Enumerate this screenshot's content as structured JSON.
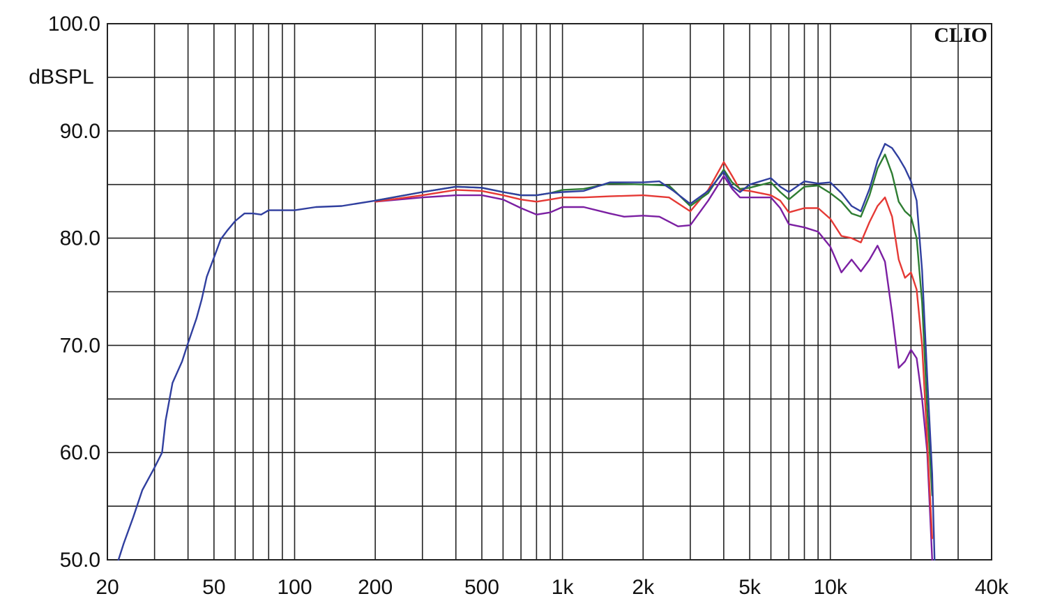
{
  "brand": "CLIO",
  "chart_data": {
    "type": "line",
    "title": "",
    "xlabel": "",
    "ylabel": "dBSPL",
    "xscale": "log",
    "xlim": [
      20,
      40000
    ],
    "ylim": [
      50,
      100
    ],
    "grid": true,
    "y_ticks": [
      {
        "value": 50,
        "label": "50.0"
      },
      {
        "value": 60,
        "label": "60.0"
      },
      {
        "value": 70,
        "label": "70.0"
      },
      {
        "value": 80,
        "label": "80.0"
      },
      {
        "value": 90,
        "label": "90.0"
      },
      {
        "value": 100,
        "label": "100.0"
      }
    ],
    "x_ticks": [
      {
        "value": 20,
        "label": "20"
      },
      {
        "value": 50,
        "label": "50"
      },
      {
        "value": 100,
        "label": "100"
      },
      {
        "value": 200,
        "label": "200"
      },
      {
        "value": 500,
        "label": "500"
      },
      {
        "value": 1000,
        "label": "1k"
      },
      {
        "value": 2000,
        "label": "2k"
      },
      {
        "value": 5000,
        "label": "5k"
      },
      {
        "value": 10000,
        "label": "10k"
      },
      {
        "value": 40000,
        "label": "40k"
      }
    ],
    "x_gridlines": [
      20,
      30,
      40,
      50,
      60,
      70,
      80,
      90,
      100,
      200,
      300,
      400,
      500,
      600,
      700,
      800,
      900,
      1000,
      2000,
      3000,
      4000,
      5000,
      6000,
      7000,
      8000,
      9000,
      10000,
      20000,
      30000,
      40000
    ],
    "y_gridlines": [
      50,
      55,
      60,
      65,
      70,
      75,
      80,
      85,
      90,
      95,
      100
    ],
    "series": [
      {
        "color": "#7b1fa2",
        "points": [
          [
            200,
            83.4
          ],
          [
            300,
            83.8
          ],
          [
            400,
            84
          ],
          [
            500,
            84
          ],
          [
            600,
            83.6
          ],
          [
            700,
            82.8
          ],
          [
            800,
            82.2
          ],
          [
            900,
            82.4
          ],
          [
            1000,
            82.9
          ],
          [
            1200,
            82.9
          ],
          [
            1500,
            82.3
          ],
          [
            1700,
            82
          ],
          [
            2000,
            82.1
          ],
          [
            2300,
            82
          ],
          [
            2700,
            81.1
          ],
          [
            3000,
            81.2
          ],
          [
            3500,
            83.5
          ],
          [
            4000,
            85.8
          ],
          [
            4300,
            84.6
          ],
          [
            4600,
            83.8
          ],
          [
            5000,
            83.8
          ],
          [
            6000,
            83.8
          ],
          [
            6500,
            82.8
          ],
          [
            7000,
            81.3
          ],
          [
            8000,
            81
          ],
          [
            9000,
            80.6
          ],
          [
            10000,
            79.2
          ],
          [
            11000,
            76.8
          ],
          [
            12000,
            78
          ],
          [
            13000,
            76.9
          ],
          [
            14000,
            78
          ],
          [
            15000,
            79.3
          ],
          [
            16000,
            77.8
          ],
          [
            17000,
            73
          ],
          [
            18000,
            67.9
          ],
          [
            19000,
            68.5
          ],
          [
            20000,
            69.6
          ],
          [
            21000,
            68.8
          ],
          [
            22000,
            65
          ],
          [
            23000,
            60
          ],
          [
            24000,
            50
          ]
        ]
      },
      {
        "color": "#e53935",
        "points": [
          [
            200,
            83.4
          ],
          [
            300,
            84
          ],
          [
            400,
            84.5
          ],
          [
            500,
            84.4
          ],
          [
            600,
            84
          ],
          [
            700,
            83.6
          ],
          [
            800,
            83.4
          ],
          [
            900,
            83.6
          ],
          [
            1000,
            83.8
          ],
          [
            1200,
            83.8
          ],
          [
            1500,
            83.9
          ],
          [
            2000,
            84
          ],
          [
            2500,
            83.8
          ],
          [
            3000,
            82.5
          ],
          [
            3500,
            84.5
          ],
          [
            4000,
            87.1
          ],
          [
            4300,
            85.8
          ],
          [
            4600,
            84.5
          ],
          [
            5000,
            84.4
          ],
          [
            6000,
            84
          ],
          [
            6500,
            83.5
          ],
          [
            7000,
            82.4
          ],
          [
            8000,
            82.8
          ],
          [
            9000,
            82.8
          ],
          [
            10000,
            81.8
          ],
          [
            11000,
            80.2
          ],
          [
            12000,
            80
          ],
          [
            13000,
            79.6
          ],
          [
            14000,
            81.5
          ],
          [
            15000,
            83
          ],
          [
            16000,
            83.8
          ],
          [
            17000,
            82
          ],
          [
            18000,
            78
          ],
          [
            19000,
            76.3
          ],
          [
            20000,
            76.8
          ],
          [
            21000,
            75.2
          ],
          [
            22000,
            70
          ],
          [
            23000,
            61
          ],
          [
            24000,
            52
          ]
        ]
      },
      {
        "color": "#2e7d32",
        "points": [
          [
            200,
            83.5
          ],
          [
            300,
            84.3
          ],
          [
            400,
            84.8
          ],
          [
            500,
            84.7
          ],
          [
            600,
            84.3
          ],
          [
            700,
            84
          ],
          [
            800,
            84
          ],
          [
            900,
            84.2
          ],
          [
            1000,
            84.5
          ],
          [
            1200,
            84.6
          ],
          [
            1500,
            85.1
          ],
          [
            2000,
            85
          ],
          [
            2500,
            84.9
          ],
          [
            3000,
            83
          ],
          [
            3500,
            84.2
          ],
          [
            4000,
            86.4
          ],
          [
            4300,
            85.2
          ],
          [
            4600,
            84.6
          ],
          [
            5000,
            84.7
          ],
          [
            6000,
            85.2
          ],
          [
            6500,
            84.3
          ],
          [
            7000,
            83.6
          ],
          [
            8000,
            84.8
          ],
          [
            9000,
            84.9
          ],
          [
            10000,
            84.2
          ],
          [
            11000,
            83.4
          ],
          [
            12000,
            82.3
          ],
          [
            13000,
            82
          ],
          [
            14000,
            84
          ],
          [
            15000,
            86.5
          ],
          [
            16000,
            87.8
          ],
          [
            17000,
            86
          ],
          [
            18000,
            83.4
          ],
          [
            19000,
            82.5
          ],
          [
            20000,
            82
          ],
          [
            21000,
            80
          ],
          [
            22000,
            74
          ],
          [
            23000,
            64
          ],
          [
            24000,
            56
          ]
        ]
      },
      {
        "color": "#303f9f",
        "points": [
          [
            22,
            50
          ],
          [
            23,
            51.5
          ],
          [
            25,
            54
          ],
          [
            27,
            56.5
          ],
          [
            30,
            58.6
          ],
          [
            32,
            60
          ],
          [
            33,
            63
          ],
          [
            35,
            66.5
          ],
          [
            38,
            68.5
          ],
          [
            40,
            70.2
          ],
          [
            43,
            72.5
          ],
          [
            45,
            74.3
          ],
          [
            47,
            76.4
          ],
          [
            50,
            78.2
          ],
          [
            53,
            79.9
          ],
          [
            56,
            80.7
          ],
          [
            60,
            81.6
          ],
          [
            65,
            82.3
          ],
          [
            70,
            82.3
          ],
          [
            75,
            82.2
          ],
          [
            80,
            82.6
          ],
          [
            90,
            82.6
          ],
          [
            100,
            82.6
          ],
          [
            120,
            82.9
          ],
          [
            150,
            83
          ],
          [
            200,
            83.5
          ],
          [
            300,
            84.3
          ],
          [
            400,
            84.8
          ],
          [
            500,
            84.7
          ],
          [
            600,
            84.3
          ],
          [
            700,
            84
          ],
          [
            800,
            84
          ],
          [
            900,
            84.2
          ],
          [
            1000,
            84.3
          ],
          [
            1200,
            84.4
          ],
          [
            1500,
            85.2
          ],
          [
            2000,
            85.2
          ],
          [
            2300,
            85.3
          ],
          [
            2600,
            84.4
          ],
          [
            3000,
            83.2
          ],
          [
            3500,
            84.4
          ],
          [
            4000,
            86.2
          ],
          [
            4300,
            84.8
          ],
          [
            4600,
            84.3
          ],
          [
            5000,
            85
          ],
          [
            6000,
            85.6
          ],
          [
            6500,
            84.8
          ],
          [
            7000,
            84.3
          ],
          [
            8000,
            85.3
          ],
          [
            9000,
            85.1
          ],
          [
            10000,
            85.2
          ],
          [
            11000,
            84.2
          ],
          [
            12000,
            83
          ],
          [
            13000,
            82.5
          ],
          [
            14000,
            84.6
          ],
          [
            15000,
            87.2
          ],
          [
            16000,
            88.8
          ],
          [
            17000,
            88.4
          ],
          [
            18000,
            87.5
          ],
          [
            19000,
            86.5
          ],
          [
            20000,
            85.3
          ],
          [
            21000,
            83.5
          ],
          [
            22000,
            77
          ],
          [
            23000,
            67
          ],
          [
            24000,
            58
          ],
          [
            24500,
            50
          ]
        ]
      }
    ]
  }
}
